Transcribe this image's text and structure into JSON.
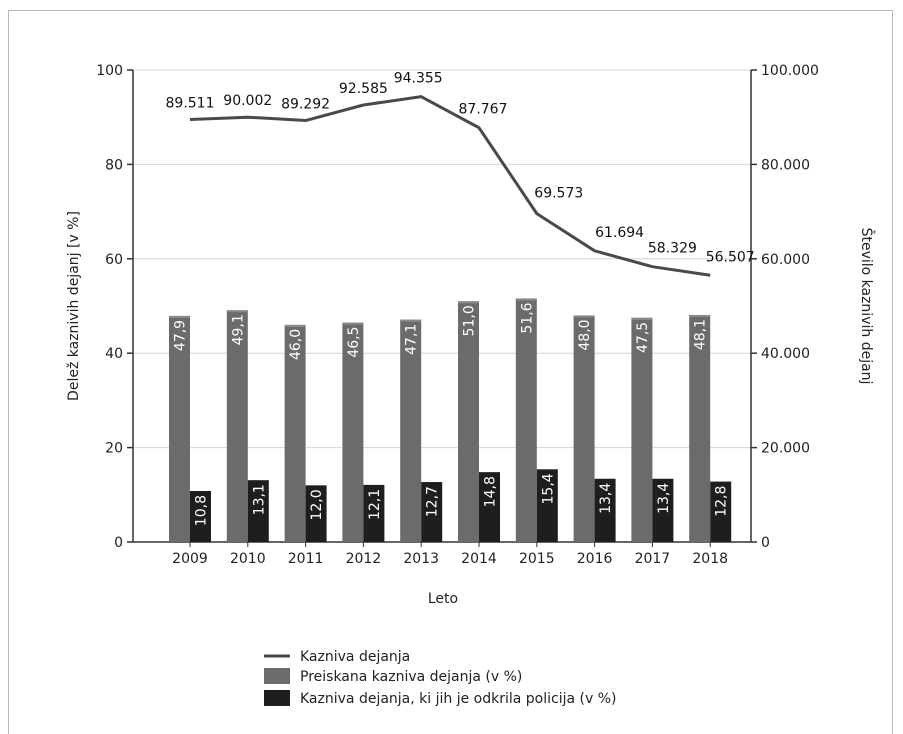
{
  "chart_data": {
    "type": "bar",
    "categories": [
      "2009",
      "2010",
      "2011",
      "2012",
      "2013",
      "2014",
      "2015",
      "2016",
      "2017",
      "2018"
    ],
    "series": [
      {
        "name": "Preiskana kazniva dejanja (v %)",
        "type": "bar",
        "axis": "left",
        "values": [
          47.9,
          49.1,
          46.0,
          46.5,
          47.1,
          51.0,
          51.6,
          48.0,
          47.5,
          48.1
        ],
        "labels": [
          "47,9",
          "49,1",
          "46,0",
          "46,5",
          "47,1",
          "51,0",
          "51,6",
          "48,0",
          "47,5",
          "48,1"
        ],
        "color": "#6b6b6b"
      },
      {
        "name": "Kazniva dejanja, ki jih je odkrila policija (v %)",
        "type": "bar",
        "axis": "left",
        "values": [
          10.8,
          13.1,
          12.0,
          12.1,
          12.7,
          14.8,
          15.4,
          13.4,
          13.4,
          12.8
        ],
        "labels": [
          "10,8",
          "13,1",
          "12,0",
          "12,1",
          "12,7",
          "14,8",
          "15,4",
          "13,4",
          "13,4",
          "12,8"
        ],
        "color": "#1e1e1e"
      },
      {
        "name": "Kazniva dejanja",
        "type": "line",
        "axis": "right",
        "values": [
          89511,
          90002,
          89292,
          92585,
          94355,
          87767,
          69573,
          61694,
          58329,
          56507
        ],
        "labels": [
          "89.511",
          "90.002",
          "89.292",
          "92.585",
          "94.355",
          "87.767",
          "69.573",
          "61.694",
          "58.329",
          "56.507"
        ],
        "color": "#4a4a4a"
      }
    ],
    "xlabel": "Leto",
    "ylabel": "Delež kaznivih dejanj [v %]",
    "y2label": "Število kaznivih dejanj",
    "ylim": [
      0,
      100
    ],
    "y2lim": [
      0,
      100000
    ],
    "yticks": [
      "0",
      "20",
      "40",
      "60",
      "80",
      "100"
    ],
    "y2ticks": [
      "0",
      "20.000",
      "40.000",
      "60.000",
      "80.000",
      "100.000"
    ],
    "grid": true,
    "legend_position": "bottom"
  }
}
